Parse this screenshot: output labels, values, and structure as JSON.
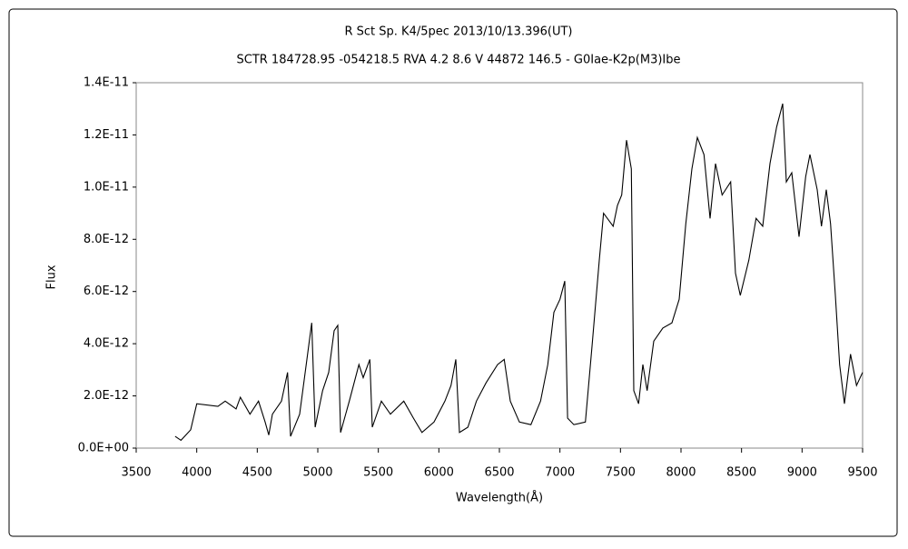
{
  "chart_data": {
    "type": "line",
    "title": "R Sct    Sp. K4/5pec    2013/10/13.396(UT)",
    "subtitle": "SCTR 184728.95 -054218.5 RVA 4.2 8.6 V 44872 146.5 - G0Iae-K2p(M3)Ibe",
    "x_label": "Wavelength(Å)",
    "y_label": "Flux",
    "color": "#000000",
    "grid": false,
    "x": [
      3822,
      3870,
      3950,
      4000,
      4175,
      4235,
      4325,
      4360,
      4440,
      4510,
      4565,
      4595,
      4625,
      4700,
      4750,
      4775,
      4850,
      4910,
      4950,
      4978,
      5040,
      5090,
      5135,
      5165,
      5188,
      5260,
      5340,
      5375,
      5430,
      5450,
      5525,
      5600,
      5710,
      5790,
      5860,
      5960,
      6050,
      6100,
      6140,
      6170,
      6240,
      6310,
      6390,
      6485,
      6540,
      6590,
      6665,
      6760,
      6840,
      6900,
      6950,
      7000,
      7040,
      7063,
      7115,
      7210,
      7265,
      7325,
      7360,
      7440,
      7475,
      7510,
      7550,
      7590,
      7610,
      7650,
      7685,
      7720,
      7775,
      7850,
      7925,
      7985,
      8040,
      8090,
      8135,
      8190,
      8240,
      8285,
      8340,
      8410,
      8450,
      8490,
      8560,
      8620,
      8675,
      8735,
      8790,
      8840,
      8870,
      8915,
      8975,
      9030,
      9065,
      9125,
      9160,
      9200,
      9235,
      9275,
      9310,
      9350,
      9400,
      9450,
      9500
    ],
    "values": [
      4.5e-13,
      3e-13,
      7e-13,
      1.7e-12,
      1.6e-12,
      1.8e-12,
      1.5e-12,
      1.95e-12,
      1.3e-12,
      1.8e-12,
      1e-12,
      5e-13,
      1.3e-12,
      1.8e-12,
      2.9e-12,
      4.5e-13,
      1.3e-12,
      3.4e-12,
      4.8e-12,
      8e-13,
      2.2e-12,
      2.9e-12,
      4.5e-12,
      4.7e-12,
      6e-13,
      1.8e-12,
      3.2e-12,
      2.7e-12,
      3.4e-12,
      8e-13,
      1.8e-12,
      1.3e-12,
      1.8e-12,
      1.15e-12,
      6e-13,
      1e-12,
      1.8e-12,
      2.4e-12,
      3.4e-12,
      6e-13,
      8e-13,
      1.8e-12,
      2.5e-12,
      3.2e-12,
      3.4e-12,
      1.8e-12,
      1e-12,
      9e-13,
      1.8e-12,
      3.2e-12,
      5.2e-12,
      5.7e-12,
      6.4e-12,
      1.15e-12,
      9e-13,
      1e-12,
      3.9e-12,
      7.2e-12,
      9e-12,
      8.5e-12,
      9.3e-12,
      9.7e-12,
      1.18e-11,
      1.07e-11,
      2.2e-12,
      1.7e-12,
      3.2e-12,
      2.2e-12,
      4.1e-12,
      4.6e-12,
      4.8e-12,
      5.7e-12,
      8.6e-12,
      1.07e-11,
      1.19e-11,
      1.125e-11,
      8.8e-12,
      1.09e-11,
      9.7e-12,
      1.02e-11,
      6.7e-12,
      5.85e-12,
      7.2e-12,
      8.8e-12,
      8.5e-12,
      1.09e-11,
      1.23e-11,
      1.32e-11,
      1.02e-11,
      1.055e-11,
      8.1e-12,
      1.04e-11,
      1.125e-11,
      9.9e-12,
      8.5e-12,
      9.9e-12,
      8.6e-12,
      5.85e-12,
      3.2e-12,
      1.7e-12,
      3.6e-12,
      2.4e-12,
      2.9e-12
    ],
    "xlim": [
      3500,
      9500
    ],
    "xticks": [
      3500,
      4000,
      4500,
      5000,
      5500,
      6000,
      6500,
      7000,
      7500,
      8000,
      8500,
      9000,
      9500
    ],
    "ylim": [
      0,
      1.4e-11
    ],
    "yticks": [
      {
        "value": 0,
        "label": "0.0E+00"
      },
      {
        "value": 2e-12,
        "label": "2.0E-12"
      },
      {
        "value": 4e-12,
        "label": "4.0E-12"
      },
      {
        "value": 6e-12,
        "label": "6.0E-12"
      },
      {
        "value": 8e-12,
        "label": "8.0E-12"
      },
      {
        "value": 1e-11,
        "label": "1.0E-11"
      },
      {
        "value": 1.2e-11,
        "label": "1.2E-11"
      },
      {
        "value": 1.4e-11,
        "label": "1.4E-11"
      }
    ]
  }
}
